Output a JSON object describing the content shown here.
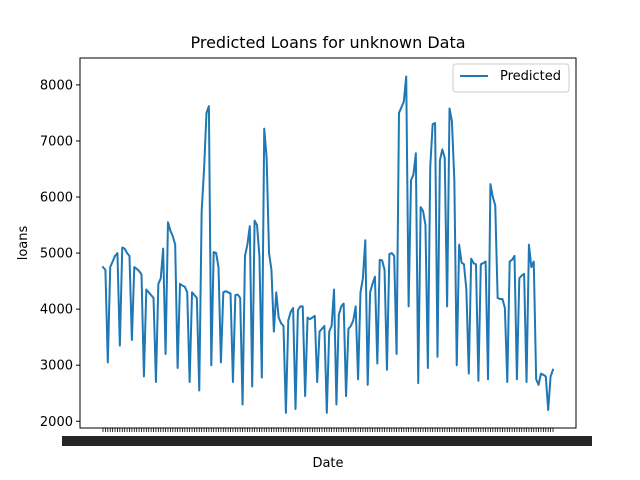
{
  "chart_data": {
    "type": "line",
    "title": "Predicted Loans for unknown Data",
    "xlabel": "Date",
    "ylabel": "loans",
    "ylim": [
      1880,
      8480
    ],
    "yticks": [
      2000,
      3000,
      4000,
      5000,
      6000,
      7000,
      8000
    ],
    "grid": false,
    "legend": {
      "position": "top-right",
      "entries": [
        "Predicted"
      ]
    },
    "colors": {
      "Predicted": "#1f77b4"
    },
    "series": [
      {
        "name": "Predicted",
        "values": [
          4750,
          4700,
          3050,
          4750,
          4850,
          4950,
          5000,
          3350,
          5100,
          5080,
          5000,
          4950,
          3450,
          4750,
          4720,
          4680,
          4620,
          2800,
          4350,
          4300,
          4250,
          4200,
          2700,
          4450,
          4550,
          5080,
          3200,
          5550,
          5400,
          5300,
          5150,
          2950,
          4450,
          4420,
          4400,
          4300,
          2700,
          4300,
          4250,
          4200,
          2550,
          5750,
          6500,
          7500,
          7620,
          3000,
          5020,
          5000,
          4750,
          3050,
          4300,
          4320,
          4300,
          4280,
          2700,
          4250,
          4260,
          4200,
          2300,
          4950,
          5150,
          5480,
          2620,
          5580,
          5500,
          4950,
          2780,
          7220,
          6700,
          5000,
          4700,
          3600,
          4300,
          3850,
          3750,
          3700,
          2150,
          3800,
          3950,
          4020,
          2220,
          3980,
          4050,
          4050,
          2450,
          3850,
          3820,
          3850,
          3880,
          2700,
          3600,
          3650,
          3700,
          2150,
          3600,
          3700,
          4350,
          2300,
          3900,
          4050,
          4100,
          2450,
          3650,
          3700,
          3800,
          4050,
          2750,
          4300,
          4550,
          5230,
          2650,
          4300,
          4450,
          4580,
          3030,
          4880,
          4870,
          4700,
          2920,
          4980,
          5000,
          4950,
          3200,
          7500,
          7600,
          7700,
          8150,
          4050,
          6300,
          6400,
          6780,
          2680,
          5820,
          5750,
          5500,
          2950,
          6550,
          7300,
          7320,
          3150,
          6650,
          6850,
          6700,
          4050,
          7580,
          7350,
          6300,
          3000,
          5150,
          4830,
          4800,
          4350,
          2850,
          4900,
          4820,
          4800,
          2720,
          4800,
          4820,
          4850,
          2750,
          6230,
          6000,
          5850,
          4200,
          4180,
          4180,
          4020,
          2700,
          4850,
          4880,
          4950,
          2750,
          4550,
          4600,
          4630,
          2700,
          5150,
          4750,
          4850,
          2750,
          2650,
          2850,
          2830,
          2800,
          2200,
          2800,
          2920
        ]
      }
    ]
  }
}
